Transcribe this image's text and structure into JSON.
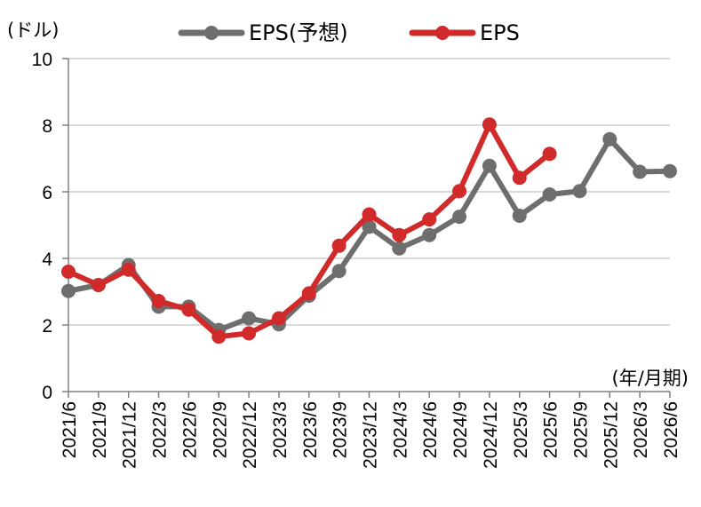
{
  "chart_data": {
    "type": "line",
    "title": "",
    "xlabel": "(年/月期)",
    "ylabel": "(ドル)",
    "ylim": [
      0,
      10
    ],
    "yticks": [
      0,
      2,
      4,
      6,
      8,
      10
    ],
    "grid": true,
    "legend_position": "top",
    "categories": [
      "2021/6",
      "2021/9",
      "2021/12",
      "2022/3",
      "2022/6",
      "2022/9",
      "2022/12",
      "2023/3",
      "2023/6",
      "2023/9",
      "2023/12",
      "2024/3",
      "2024/6",
      "2024/9",
      "2024/12",
      "2025/3",
      "2025/6",
      "2025/9",
      "2025/12",
      "2026/3",
      "2026/6"
    ],
    "series": [
      {
        "name": "EPS(予想)",
        "color": "#6e6e6e",
        "values": [
          3.02,
          3.2,
          3.8,
          2.55,
          2.55,
          1.85,
          2.2,
          2.02,
          2.88,
          3.62,
          4.95,
          4.3,
          4.7,
          5.25,
          6.78,
          5.28,
          5.92,
          6.02,
          7.58,
          6.6,
          6.62
        ]
      },
      {
        "name": "EPS",
        "color": "#d12a2a",
        "values": [
          3.6,
          3.2,
          3.66,
          2.72,
          2.46,
          1.65,
          1.75,
          2.2,
          2.95,
          4.38,
          5.32,
          4.7,
          5.17,
          6.02,
          8.02,
          6.42,
          7.14,
          null,
          null,
          null,
          null
        ]
      }
    ]
  }
}
